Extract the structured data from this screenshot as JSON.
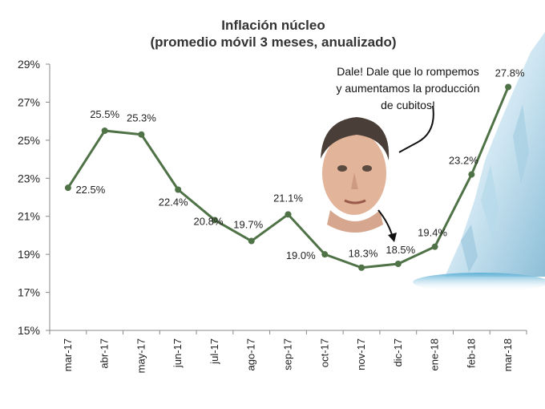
{
  "chart_data": {
    "type": "line",
    "title": "Inflación núcleo",
    "subtitle": "(promedio móvil 3 meses, anualizado)",
    "categories": [
      "mar-17",
      "abr-17",
      "may-17",
      "jun-17",
      "jul-17",
      "ago-17",
      "sep-17",
      "oct-17",
      "nov-17",
      "dic-17",
      "ene-18",
      "feb-18",
      "mar-18"
    ],
    "values": [
      22.5,
      25.5,
      25.3,
      22.4,
      20.8,
      19.7,
      21.1,
      19.0,
      18.3,
      18.5,
      19.4,
      23.2,
      27.8
    ],
    "data_labels": [
      "22.5%",
      "25.5%",
      "25.3%",
      "22.4%",
      "20.8%",
      "19.7%",
      "21.1%",
      "19.0%",
      "18.3%",
      "18.5%",
      "19.4%",
      "23.2%",
      "27.8%"
    ],
    "ylim": [
      15,
      29
    ],
    "yticks": [
      15,
      17,
      19,
      21,
      23,
      25,
      27,
      29
    ],
    "ytick_labels": [
      "15%",
      "17%",
      "19%",
      "21%",
      "23%",
      "25%",
      "27%",
      "29%"
    ],
    "xlabel": "",
    "ylabel": "",
    "grid": false,
    "line_color": "#4f7247",
    "annotation": {
      "lines": [
        "Dale! Dale que lo rompemos",
        "y aumentamos la producción",
        "de cubitos!"
      ]
    },
    "decor": {
      "face_icon": "man-face-photo",
      "iceberg_icon": "iceberg-photo"
    }
  }
}
